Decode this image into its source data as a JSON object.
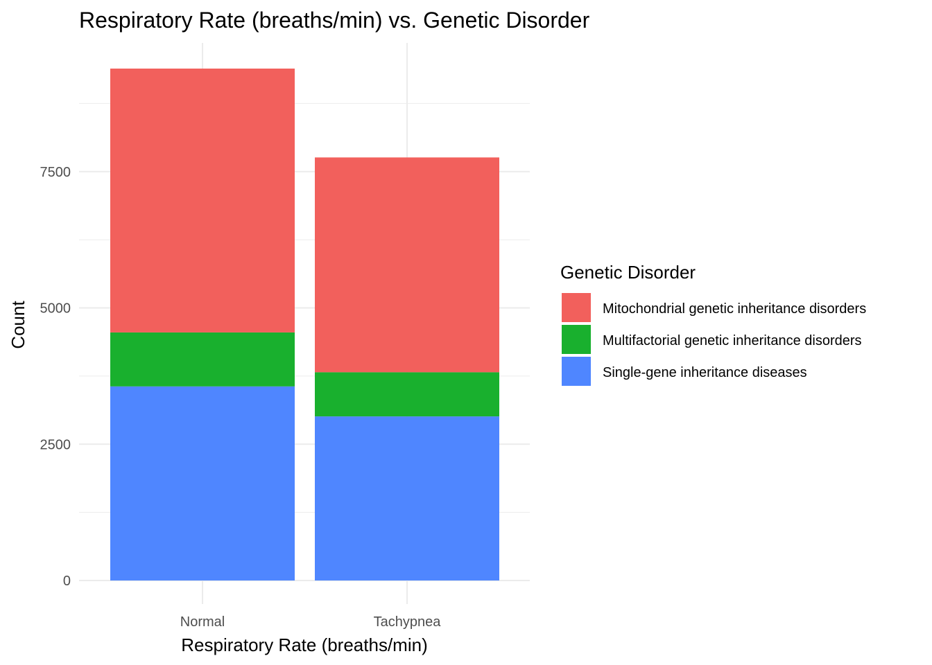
{
  "chart_data": {
    "type": "bar",
    "stacked": true,
    "title": "Respiratory Rate (breaths/min) vs. Genetic Disorder",
    "xlabel": "Respiratory Rate (breaths/min)",
    "ylabel": "Count",
    "categories": [
      "Normal",
      "Tachypnea"
    ],
    "ylim": [
      0,
      9800
    ],
    "yticks": [
      0,
      2500,
      5000,
      7500
    ],
    "yticks_minor": [
      1250,
      3750,
      6250,
      8750
    ],
    "grid": true,
    "legend": {
      "title": "Genetic Disorder",
      "position": "right"
    },
    "series": [
      {
        "name": "Single-gene inheritance diseases",
        "color": "#4f86ff",
        "values": [
          3560,
          3010
        ]
      },
      {
        "name": "Multifactorial genetic inheritance disorders",
        "color": "#19b02e",
        "values": [
          990,
          810
        ]
      },
      {
        "name": "Mitochondrial genetic inheritance disorders",
        "color": "#f2605c",
        "values": [
          4840,
          3940
        ]
      }
    ],
    "legend_order": [
      2,
      1,
      0
    ]
  }
}
